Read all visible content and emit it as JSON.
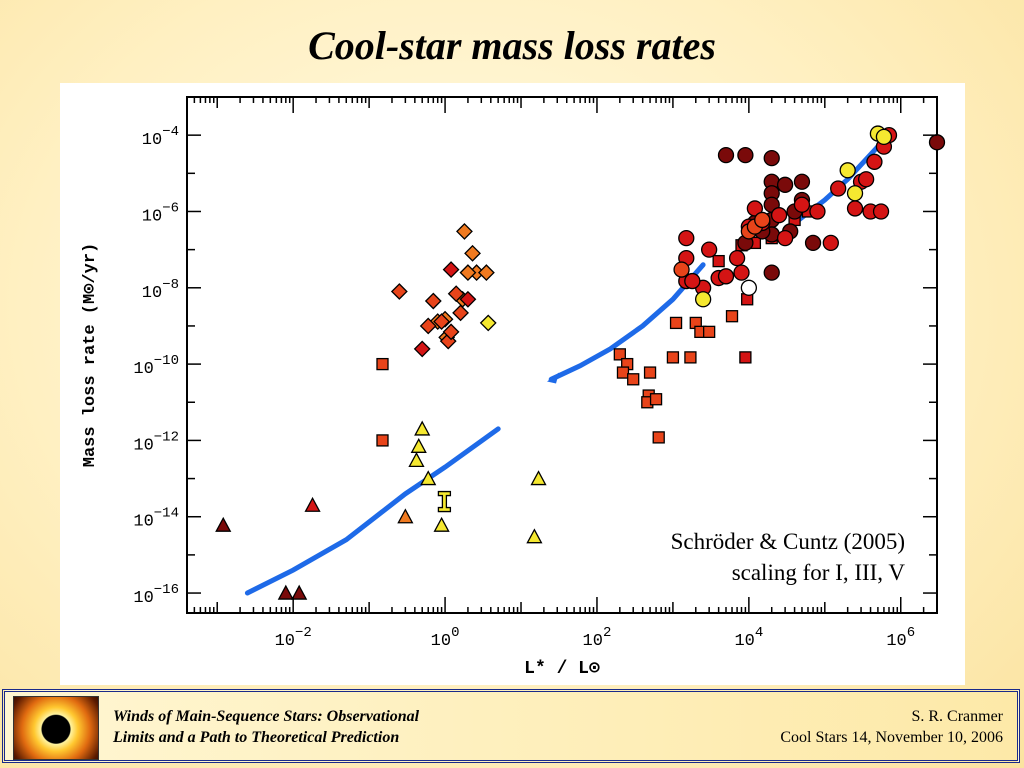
{
  "slide": {
    "title": "Cool-star mass loss rates"
  },
  "footer": {
    "talk_title_line1": "Winds of Main-Sequence Stars:  Observational",
    "talk_title_line2": "Limits and a Path to Theoretical Prediction",
    "author": "S. R. Cranmer",
    "venue": "Cool Stars 14,  November 10, 2006"
  },
  "chart_data": {
    "type": "scatter",
    "xlabel": "L* / L⊙",
    "ylabel": "Mass loss rate (M⊙/yr)",
    "x_scale": "log",
    "y_scale": "log",
    "xlim": [
      0.0004,
      3000000
    ],
    "ylim": [
      3e-17,
      0.001
    ],
    "x_ticks": [
      {
        "value": 0.01,
        "base": "10",
        "exp": "−2"
      },
      {
        "value": 1,
        "base": "10",
        "exp": "0"
      },
      {
        "value": 100,
        "base": "10",
        "exp": "2"
      },
      {
        "value": 10000,
        "base": "10",
        "exp": "4"
      },
      {
        "value": 1000000,
        "base": "10",
        "exp": "6"
      }
    ],
    "y_ticks": [
      {
        "value": 1e-16,
        "base": "10",
        "exp": "−16"
      },
      {
        "value": 1e-14,
        "base": "10",
        "exp": "−14"
      },
      {
        "value": 1e-12,
        "base": "10",
        "exp": "−12"
      },
      {
        "value": 1e-10,
        "base": "10",
        "exp": "−10"
      },
      {
        "value": 1e-08,
        "base": "10",
        "exp": "−8"
      },
      {
        "value": 1e-06,
        "base": "10",
        "exp": "−6"
      },
      {
        "value": 0.0001,
        "base": "10",
        "exp": "−4"
      }
    ],
    "annotation_line1": "Schröder & Cuntz (2005)",
    "annotation_line2": "scaling for I, III, V",
    "colors": {
      "dark_red": "#7a0a0a",
      "red": "#d41414",
      "orange_red": "#e8441a",
      "orange": "#f07a20",
      "yellow": "#f5e830",
      "scaling_line": "#1e6ae8"
    },
    "scaling_curves": [
      [
        [
          0.0025,
          1e-16
        ],
        [
          0.01,
          4e-16
        ],
        [
          0.05,
          2.5e-15
        ],
        [
          0.3,
          4e-14
        ],
        [
          1,
          2e-13
        ],
        [
          5,
          2e-12
        ]
      ],
      [
        [
          25,
          4e-11
        ],
        [
          60,
          9e-11
        ],
        [
          150,
          2.5e-10
        ],
        [
          400,
          1e-09
        ],
        [
          1000,
          5e-09
        ],
        [
          2500,
          4e-08
        ]
      ],
      [
        [
          35000,
          4e-07
        ],
        [
          50000,
          7e-07
        ],
        [
          100000,
          2e-06
        ],
        [
          200000,
          7e-06
        ],
        [
          500000,
          5e-05
        ]
      ]
    ],
    "arrow_tip": [
      22,
      3.5e-11
    ],
    "series": [
      {
        "marker": "triangle",
        "color": "dark_red",
        "points": [
          [
            0.0012,
            6e-15
          ],
          [
            0.008,
            1e-16
          ],
          [
            0.012,
            1e-16
          ]
        ]
      },
      {
        "marker": "triangle",
        "color": "red",
        "points": [
          [
            0.018,
            2e-14
          ]
        ]
      },
      {
        "marker": "triangle",
        "color": "orange",
        "points": [
          [
            0.3,
            1e-14
          ]
        ]
      },
      {
        "marker": "triangle",
        "color": "yellow",
        "points": [
          [
            0.5,
            2e-12
          ],
          [
            0.45,
            7e-13
          ],
          [
            0.42,
            3e-13
          ],
          [
            0.6,
            1e-13
          ],
          [
            0.9,
            6e-15
          ],
          [
            15,
            3e-15
          ],
          [
            17,
            1e-13
          ]
        ]
      },
      {
        "marker": "errorbar",
        "color": "yellow",
        "points": [
          [
            0.98,
            2.5e-14
          ]
        ]
      },
      {
        "marker": "diamond",
        "color": "orange",
        "points": [
          [
            1.8,
            3e-07
          ],
          [
            2.3,
            8e-08
          ],
          [
            2.6,
            2.5e-08
          ],
          [
            3.5,
            2.5e-08
          ],
          [
            2,
            2.5e-08
          ],
          [
            0.8,
            1.3e-09
          ],
          [
            1,
            1.5e-09
          ],
          [
            1.7,
            5e-09
          ],
          [
            1.05,
            5e-10
          ]
        ]
      },
      {
        "marker": "diamond",
        "color": "orange_red",
        "points": [
          [
            0.25,
            8e-09
          ],
          [
            0.7,
            4.5e-09
          ],
          [
            1.4,
            7e-09
          ],
          [
            0.6,
            1e-09
          ],
          [
            0.9,
            1.3e-09
          ],
          [
            1.1,
            4e-10
          ],
          [
            1.2,
            7e-10
          ],
          [
            1.6,
            2.2e-09
          ]
        ]
      },
      {
        "marker": "diamond",
        "color": "red",
        "points": [
          [
            1.2,
            3e-08
          ],
          [
            0.5,
            2.5e-10
          ],
          [
            2,
            5e-09
          ]
        ]
      },
      {
        "marker": "diamond",
        "color": "yellow",
        "points": [
          [
            3.7,
            1.2e-09
          ]
        ]
      },
      {
        "marker": "square",
        "color": "orange_red",
        "points": [
          [
            0.15,
            1e-10
          ],
          [
            0.15,
            1e-12
          ],
          [
            200,
            1.8e-10
          ],
          [
            250,
            1e-10
          ],
          [
            220,
            6e-11
          ],
          [
            300,
            4e-11
          ],
          [
            500,
            6e-11
          ],
          [
            480,
            1.5e-11
          ],
          [
            460,
            1e-11
          ],
          [
            600,
            1.2e-11
          ],
          [
            650,
            1.2e-12
          ],
          [
            1000,
            1.5e-10
          ],
          [
            1100,
            1.2e-09
          ],
          [
            1700,
            1.5e-10
          ],
          [
            2000,
            1.2e-09
          ],
          [
            2300,
            7e-10
          ],
          [
            3000,
            7e-10
          ],
          [
            6000,
            1.8e-09
          ]
        ]
      },
      {
        "marker": "square",
        "color": "red",
        "points": [
          [
            4000,
            5e-08
          ],
          [
            8000,
            1.3e-07
          ],
          [
            12000,
            1.5e-07
          ],
          [
            9000,
            1.5e-10
          ],
          [
            9500,
            5e-09
          ],
          [
            20000,
            2e-07
          ],
          [
            40000,
            6e-07
          ],
          [
            60000,
            1e-06
          ]
        ]
      },
      {
        "marker": "circle",
        "color": "dark_red",
        "points": [
          [
            5000,
            3e-05
          ],
          [
            9000,
            3e-05
          ],
          [
            20000,
            2.5e-05
          ],
          [
            20000,
            6e-06
          ],
          [
            20000,
            3e-06
          ],
          [
            20000,
            1.5e-06
          ],
          [
            20000,
            6e-07
          ],
          [
            20000,
            2.5e-07
          ],
          [
            30000,
            5e-06
          ],
          [
            50000,
            6e-06
          ],
          [
            50000,
            2e-06
          ],
          [
            40000,
            1e-06
          ],
          [
            35000,
            3e-07
          ],
          [
            70000,
            1.5e-07
          ],
          [
            12000,
            5e-07
          ],
          [
            15000,
            3e-07
          ],
          [
            9000,
            1.5e-07
          ],
          [
            20000,
            2.5e-08
          ],
          [
            3000000,
            6.5e-05
          ]
        ]
      },
      {
        "marker": "circle",
        "color": "red",
        "points": [
          [
            1500,
            2e-07
          ],
          [
            1500,
            6e-08
          ],
          [
            1500,
            1.5e-08
          ],
          [
            2500,
            1e-08
          ],
          [
            3000,
            1e-07
          ],
          [
            4000,
            1.8e-08
          ],
          [
            5000,
            2e-08
          ],
          [
            7000,
            6e-08
          ],
          [
            8000,
            2.5e-08
          ],
          [
            10000,
            4e-07
          ],
          [
            12000,
            1.2e-06
          ],
          [
            15000,
            5e-07
          ],
          [
            25000,
            8e-07
          ],
          [
            30000,
            2e-07
          ],
          [
            50000,
            1.5e-06
          ],
          [
            80000,
            1e-06
          ],
          [
            120000,
            1.5e-07
          ],
          [
            150000,
            4e-06
          ],
          [
            250000,
            1.2e-06
          ],
          [
            300000,
            6e-06
          ],
          [
            350000,
            7e-06
          ],
          [
            400000,
            1e-06
          ],
          [
            450000,
            2e-05
          ],
          [
            550000,
            1e-06
          ],
          [
            600000,
            5e-05
          ],
          [
            700000,
            0.0001
          ],
          [
            1800,
            1.5e-08
          ]
        ]
      },
      {
        "marker": "circle",
        "color": "orange_red",
        "points": [
          [
            10000,
            3e-07
          ],
          [
            12000,
            4e-07
          ],
          [
            15000,
            6e-07
          ],
          [
            1300,
            3e-08
          ]
        ]
      },
      {
        "marker": "circle",
        "color": "yellow",
        "points": [
          [
            2500,
            5e-09
          ],
          [
            200000,
            1.2e-05
          ],
          [
            250000,
            3e-06
          ],
          [
            500000,
            0.00011
          ],
          [
            600000,
            9e-05
          ]
        ]
      },
      {
        "marker": "circle_open",
        "color": "white",
        "points": [
          [
            10000,
            1e-08
          ]
        ]
      }
    ]
  }
}
